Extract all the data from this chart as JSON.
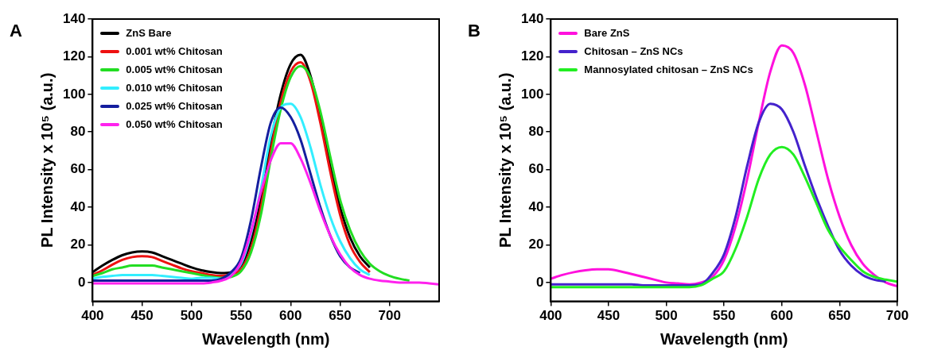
{
  "chart_data": [
    {
      "type": "line",
      "annotations": [
        "A"
      ],
      "xlabel": "Wavelength (nm)",
      "ylabel": "PL Intensity x 10⁵ (a.u.)",
      "xlim": [
        400,
        750
      ],
      "xticks": [
        400,
        450,
        500,
        550,
        600,
        650,
        700
      ],
      "ylim": [
        -10,
        140
      ],
      "yticks": [
        0,
        20,
        40,
        60,
        80,
        100,
        120,
        140
      ],
      "grid": false,
      "legend": "top left",
      "marker": "none",
      "line_style": "solid",
      "x": [
        400,
        410,
        420,
        430,
        440,
        450,
        460,
        470,
        480,
        490,
        500,
        510,
        520,
        530,
        540,
        550,
        560,
        570,
        580,
        590,
        600,
        610,
        620,
        630,
        640,
        650,
        660,
        670,
        680,
        690,
        700,
        710,
        720,
        730,
        740,
        750
      ],
      "series": [
        {
          "name": "ZnS Bare",
          "color": "#000000",
          "values": [
            5.5,
            9,
            12,
            14.5,
            16,
            16.5,
            16,
            14,
            12,
            10,
            8,
            6.5,
            5.5,
            5,
            5.5,
            9,
            22,
            45,
            75,
            100,
            116,
            121,
            110,
            88,
            62,
            40,
            24,
            14,
            8,
            null,
            null,
            null,
            null,
            null,
            null,
            null
          ]
        },
        {
          "name": "0.001 wt% Chitosan",
          "color": "#ee1111",
          "values": [
            4,
            6.5,
            9.5,
            12,
            13.5,
            14,
            13.5,
            11.5,
            9.5,
            7.5,
            6,
            5,
            4,
            3.5,
            4.5,
            7,
            18,
            40,
            70,
            96,
            112,
            117,
            107,
            85,
            59,
            36,
            20,
            11,
            5.5,
            null,
            null,
            null,
            null,
            null,
            null,
            null
          ]
        },
        {
          "name": "0.005 wt% Chitosan",
          "color": "#22dd22",
          "values": [
            3.5,
            5,
            7,
            8,
            9,
            9,
            9,
            8,
            7,
            6,
            5,
            4,
            3,
            2.5,
            3,
            6,
            16,
            36,
            66,
            92,
            109,
            115,
            109,
            91,
            67,
            44,
            28,
            17,
            10,
            6,
            3.5,
            2,
            1,
            null,
            null,
            null
          ]
        },
        {
          "name": "0.010 wt% Chitosan",
          "color": "#33eeff",
          "values": [
            2,
            3,
            3.5,
            4,
            4,
            4,
            4,
            3.5,
            3,
            2.5,
            2,
            2.5,
            2.5,
            2,
            4.5,
            10,
            26,
            50,
            78,
            93,
            95,
            88,
            72,
            52,
            35,
            22,
            13,
            7,
            4,
            null,
            null,
            null,
            null,
            null,
            null,
            null
          ]
        },
        {
          "name": "0.025 wt% Chitosan",
          "color": "#141e9e",
          "values": [
            1,
            1,
            1,
            1,
            1,
            1,
            1,
            1,
            1,
            1,
            1,
            1,
            1,
            2,
            5.5,
            13,
            33,
            61,
            85,
            93,
            88,
            76,
            58,
            40,
            25,
            14,
            8,
            5,
            null,
            null,
            null,
            null,
            null,
            null,
            null,
            null
          ]
        },
        {
          "name": "0.050 wt% Chitosan",
          "color": "#ff22ee",
          "values": [
            -0.5,
            -0.5,
            -0.5,
            -0.5,
            -0.5,
            -0.5,
            -0.5,
            -0.5,
            -0.5,
            -0.5,
            -0.5,
            -0.5,
            0,
            1,
            3.5,
            11,
            27,
            48,
            65,
            74,
            74,
            66,
            53,
            38,
            25,
            15,
            8,
            4,
            2,
            1,
            0.5,
            0,
            0,
            0,
            -0.5,
            -1
          ]
        }
      ]
    },
    {
      "type": "line",
      "annotations": [
        "B"
      ],
      "xlabel": "Wavelength (nm)",
      "ylabel": "PL Intensity x 10⁵ (a.u.)",
      "xlim": [
        400,
        700
      ],
      "xticks": [
        400,
        450,
        500,
        550,
        600,
        650,
        700
      ],
      "ylim": [
        -10,
        140
      ],
      "yticks": [
        0,
        20,
        40,
        60,
        80,
        100,
        120,
        140
      ],
      "grid": false,
      "legend": "top left",
      "marker": "none",
      "line_style": "solid",
      "x": [
        400,
        410,
        420,
        430,
        440,
        450,
        460,
        470,
        480,
        490,
        500,
        510,
        520,
        530,
        540,
        550,
        560,
        570,
        580,
        590,
        600,
        610,
        620,
        630,
        640,
        650,
        660,
        670,
        680,
        690,
        700
      ],
      "series": [
        {
          "name": "Bare ZnS",
          "color": "#ff11dd",
          "values": [
            2,
            4,
            5.5,
            6.5,
            7,
            7,
            6,
            4.5,
            3,
            1.5,
            0,
            -0.5,
            -1,
            0,
            3,
            12,
            30,
            55,
            85,
            112,
            126,
            122,
            105,
            80,
            55,
            35,
            20,
            10,
            4,
            0,
            -2
          ]
        },
        {
          "name": "Chitosan – ZnS NCs",
          "color": "#4422cc",
          "values": [
            -1,
            -1,
            -1,
            -1,
            -1,
            -1,
            -1,
            -1,
            -1.5,
            -1.5,
            -1.5,
            -1.5,
            -1.5,
            -1,
            5,
            15,
            35,
            62,
            85,
            95,
            92,
            80,
            62,
            45,
            30,
            17,
            9,
            4,
            1.5,
            0.5,
            null
          ]
        },
        {
          "name": "Mannosylated chitosan – ZnS NCs",
          "color": "#22ee22",
          "values": [
            -2.5,
            -2.5,
            -2.5,
            -2.5,
            -2.5,
            -2.5,
            -2.5,
            -2.5,
            -2.5,
            -2.5,
            -2.5,
            -2.5,
            -2.5,
            -1.5,
            2,
            6,
            18,
            35,
            55,
            68,
            72,
            68,
            56,
            42,
            28,
            19,
            12,
            6,
            3,
            1.5,
            0.5
          ]
        }
      ]
    }
  ]
}
